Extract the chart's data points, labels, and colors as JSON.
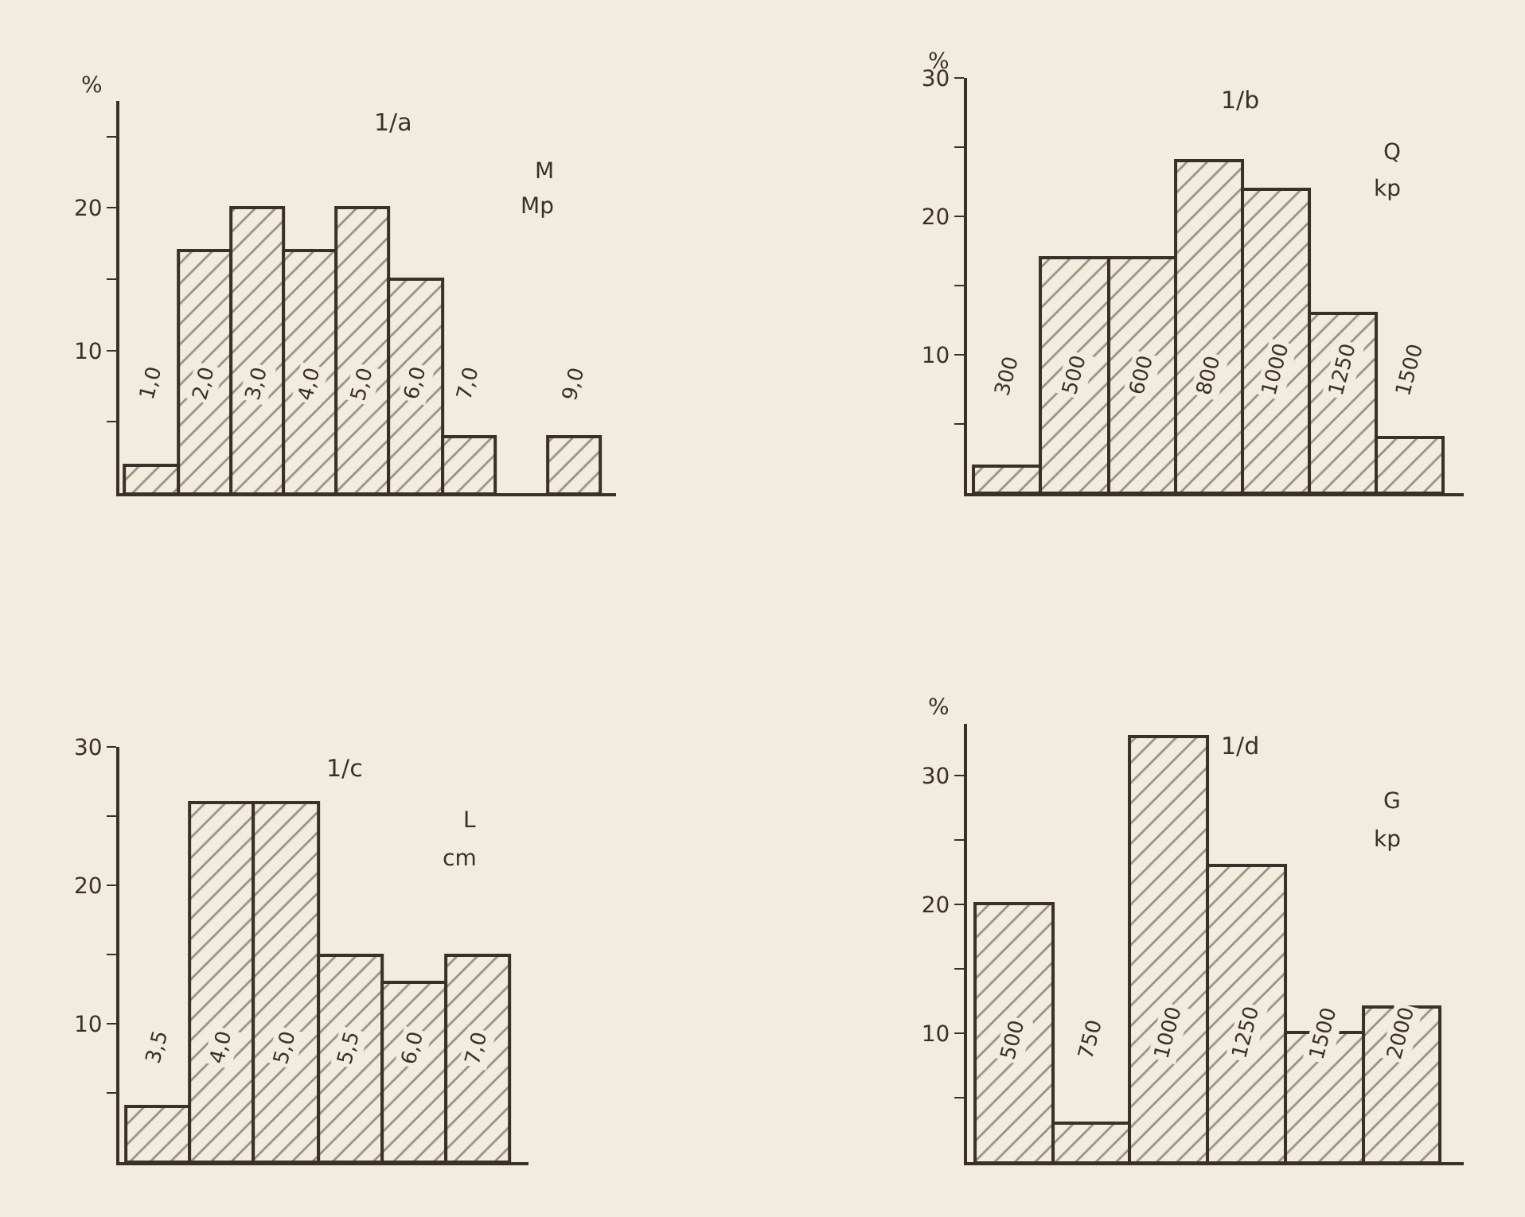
{
  "chart_data": [
    {
      "type": "bar",
      "title": "1/a",
      "ylabel": "%",
      "annotations": [
        "M",
        "Mp"
      ],
      "categories": [
        "1,0",
        "2,0",
        "3,0",
        "4,0",
        "5,0",
        "6,0",
        "7,0",
        null,
        "9,0"
      ],
      "values": [
        2,
        17,
        20,
        17,
        20,
        15,
        4,
        null,
        4
      ],
      "color": "#3a3029",
      "ylim": [
        0,
        27.5
      ],
      "yticks": [
        {
          "value": 5,
          "label": null
        },
        10,
        {
          "value": 15,
          "label": null
        },
        20,
        {
          "value": 25,
          "label": null
        }
      ]
    },
    {
      "type": "bar",
      "title": "1/b",
      "ylabel": "%",
      "annotations": [
        "Q",
        "kp"
      ],
      "categories": [
        "300",
        "500",
        "600",
        "800",
        "1000",
        "1250",
        "1500"
      ],
      "values": [
        2,
        17,
        17,
        24,
        22,
        13,
        4
      ],
      "color": "#3a3029",
      "ylim": [
        0,
        30
      ],
      "yticks": [
        {
          "value": 5,
          "label": null
        },
        10,
        {
          "value": 15,
          "label": null
        },
        20,
        {
          "value": 25,
          "label": null
        },
        30
      ]
    },
    {
      "type": "bar",
      "title": "1/c",
      "annotations": [
        "L",
        "cm"
      ],
      "categories": [
        "3,5",
        "4,0",
        "5,0",
        "5,5",
        "6,0",
        "7,0"
      ],
      "values": [
        4,
        26,
        26,
        15,
        13,
        15
      ],
      "color": "#3a3029",
      "ylim": [
        0,
        30
      ],
      "yticks": [
        {
          "value": 5,
          "label": null
        },
        10,
        {
          "value": 15,
          "label": null
        },
        20,
        {
          "value": 25,
          "label": null
        },
        30
      ]
    },
    {
      "type": "bar",
      "title": "1/d",
      "ylabel": "%",
      "annotations": [
        "G",
        "kp"
      ],
      "categories": [
        "500",
        "750",
        "1000",
        "1250",
        "1500",
        "2000"
      ],
      "values": [
        20,
        3,
        33,
        23,
        10,
        12
      ],
      "color": "#3a3029",
      "ylim": [
        0,
        34
      ],
      "yticks": [
        {
          "value": 5,
          "label": null
        },
        10,
        {
          "value": 15,
          "label": null
        },
        20,
        {
          "value": 25,
          "label": null
        },
        30
      ]
    }
  ]
}
